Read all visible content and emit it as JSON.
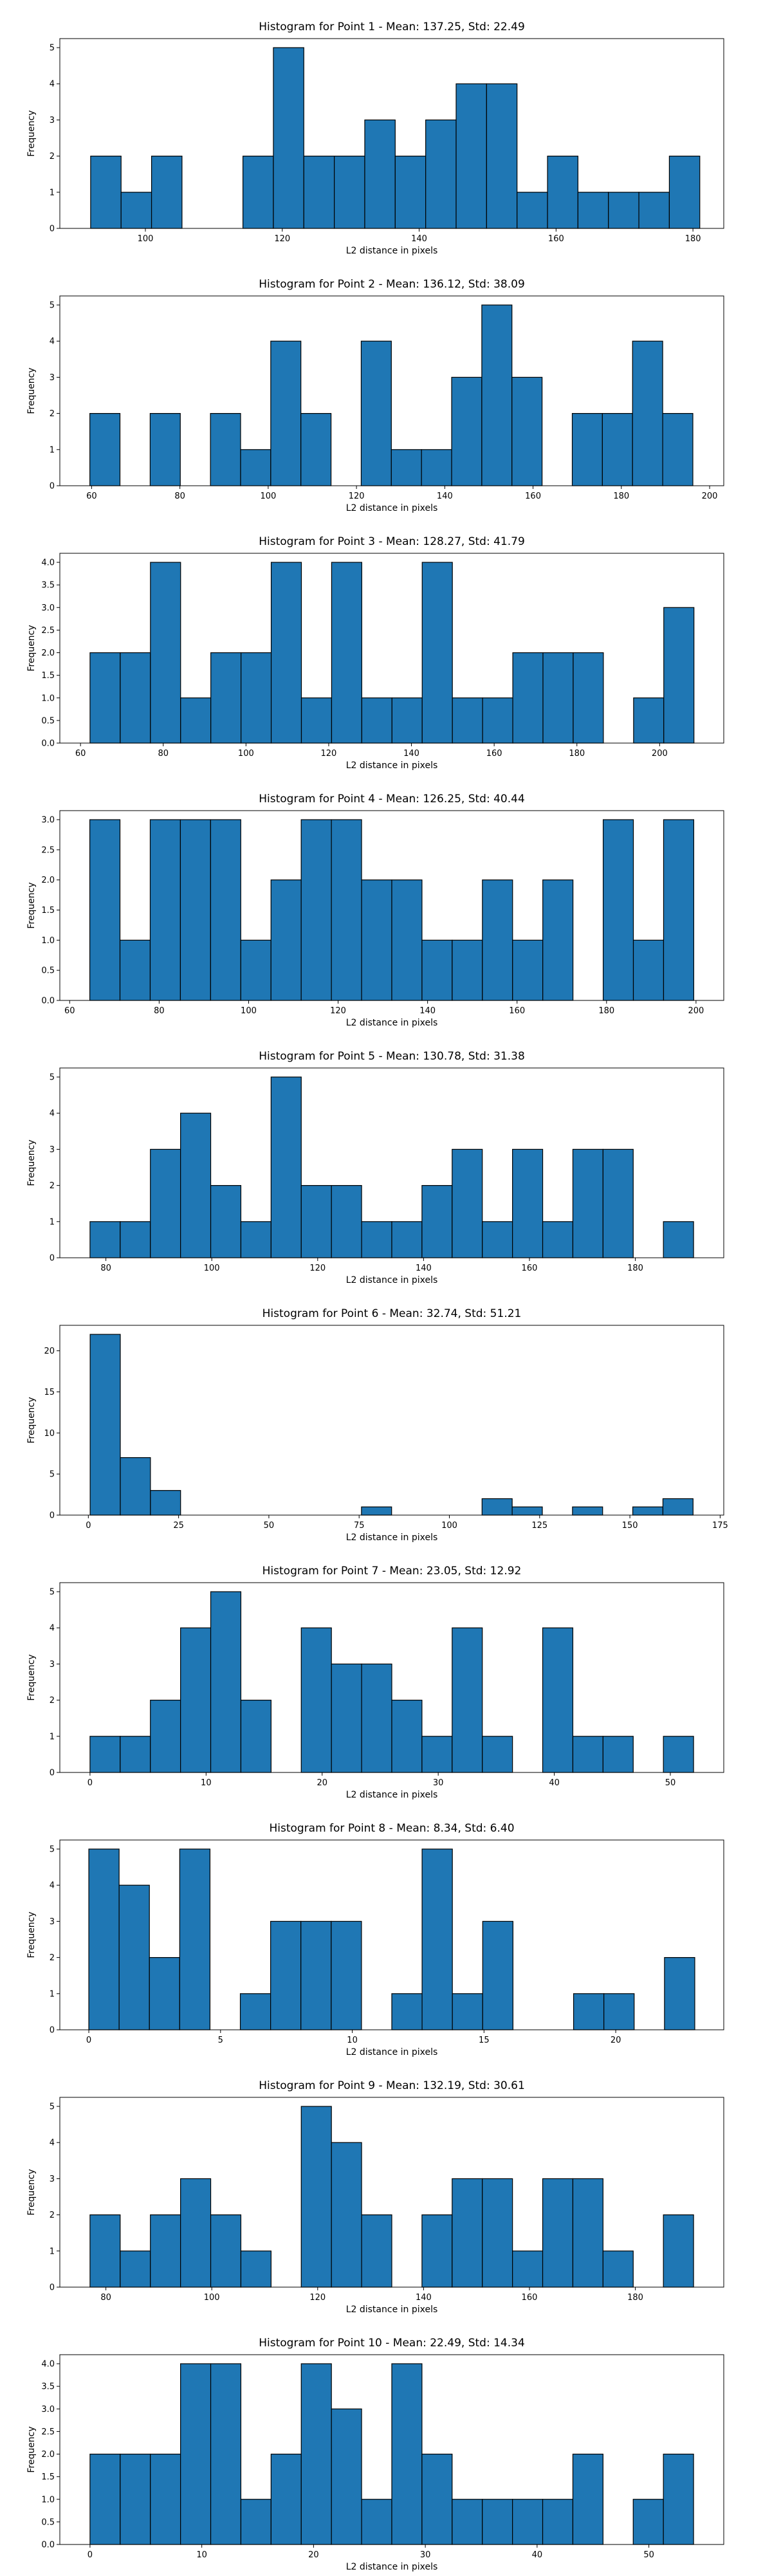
{
  "chart_data": [
    {
      "type": "bar",
      "title": "Histogram for Point 1 - Mean: 137.25, Std: 22.49",
      "xlabel": "L2 distance in pixels",
      "ylabel": "Frequency",
      "color": "#1f77b4",
      "edge_color": "#000000",
      "grid": false,
      "xlim": [
        87.5,
        184.5
      ],
      "ylim": [
        0,
        5.25
      ],
      "bin_start": 92.0,
      "bin_width": 4.45,
      "values": [
        2,
        1,
        2,
        0,
        0,
        2,
        5,
        2,
        2,
        3,
        2,
        3,
        4,
        4,
        1,
        2,
        1,
        1,
        1,
        2
      ],
      "xticks": [
        100,
        120,
        140,
        160,
        180
      ],
      "yticks": [
        0,
        1,
        2,
        3,
        4,
        5
      ]
    },
    {
      "type": "bar",
      "title": "Histogram for Point 2 - Mean: 136.12, Std: 38.09",
      "xlabel": "L2 distance in pixels",
      "ylabel": "Frequency",
      "color": "#1f77b4",
      "edge_color": "#000000",
      "grid": false,
      "xlim": [
        52.8,
        203.2
      ],
      "ylim": [
        0,
        5.25
      ],
      "bin_start": 59.6,
      "bin_width": 6.83,
      "values": [
        2,
        0,
        2,
        0,
        2,
        1,
        4,
        2,
        0,
        4,
        1,
        1,
        3,
        5,
        3,
        0,
        2,
        2,
        4,
        2
      ],
      "xticks": [
        60,
        80,
        100,
        120,
        140,
        160,
        180,
        200
      ],
      "yticks": [
        0,
        1,
        2,
        3,
        4,
        5
      ]
    },
    {
      "type": "bar",
      "title": "Histogram for Point 3 - Mean: 128.27, Std: 41.79",
      "xlabel": "L2 distance in pixels",
      "ylabel": "Frequency",
      "color": "#1f77b4",
      "edge_color": "#000000",
      "grid": false,
      "xlim": [
        55.0,
        215.5
      ],
      "ylim": [
        0,
        4.2
      ],
      "bin_start": 62.3,
      "bin_width": 7.3,
      "values": [
        2,
        2,
        4,
        1,
        2,
        2,
        4,
        1,
        4,
        1,
        1,
        4,
        1,
        1,
        2,
        2,
        2,
        0,
        1,
        3
      ],
      "xticks": [
        60,
        80,
        100,
        120,
        140,
        160,
        180,
        200
      ],
      "yticks": [
        0.0,
        0.5,
        1.0,
        1.5,
        2.0,
        2.5,
        3.0,
        3.5,
        4.0
      ]
    },
    {
      "type": "bar",
      "title": "Histogram for Point 4 - Mean: 126.25, Std: 40.44",
      "xlabel": "L2 distance in pixels",
      "ylabel": "Frequency",
      "color": "#1f77b4",
      "edge_color": "#000000",
      "grid": false,
      "xlim": [
        57.8,
        206.2
      ],
      "ylim": [
        0,
        3.15
      ],
      "bin_start": 64.5,
      "bin_width": 6.75,
      "values": [
        3,
        1,
        3,
        3,
        3,
        1,
        2,
        3,
        3,
        2,
        2,
        1,
        1,
        2,
        1,
        2,
        0,
        3,
        1,
        3
      ],
      "xticks": [
        60,
        80,
        100,
        120,
        140,
        160,
        180,
        200
      ],
      "yticks": [
        0.0,
        0.5,
        1.0,
        1.5,
        2.0,
        2.5,
        3.0
      ]
    },
    {
      "type": "bar",
      "title": "Histogram for Point 5 - Mean: 130.78, Std: 31.38",
      "xlabel": "L2 distance in pixels",
      "ylabel": "Frequency",
      "color": "#1f77b4",
      "edge_color": "#000000",
      "grid": false,
      "xlim": [
        71.3,
        196.7
      ],
      "ylim": [
        0,
        5.25
      ],
      "bin_start": 77.0,
      "bin_width": 5.7,
      "values": [
        1,
        1,
        3,
        4,
        2,
        1,
        5,
        2,
        2,
        1,
        1,
        2,
        3,
        1,
        3,
        1,
        3,
        3,
        0,
        1
      ],
      "xticks": [
        80,
        100,
        120,
        140,
        160,
        180
      ],
      "yticks": [
        0,
        1,
        2,
        3,
        4,
        5
      ]
    },
    {
      "type": "bar",
      "title": "Histogram for Point 6 - Mean: 32.74, Std: 51.21",
      "xlabel": "L2 distance in pixels",
      "ylabel": "Frequency",
      "color": "#1f77b4",
      "edge_color": "#000000",
      "grid": false,
      "xlim": [
        -7.9,
        176.0
      ],
      "ylim": [
        0,
        23.1
      ],
      "bin_start": 0.5,
      "bin_width": 8.35,
      "values": [
        22,
        7,
        3,
        0,
        0,
        0,
        0,
        0,
        0,
        1,
        0,
        0,
        0,
        2,
        1,
        0,
        1,
        0,
        1,
        2
      ],
      "xticks": [
        0,
        25,
        50,
        75,
        100,
        125,
        150,
        175
      ],
      "yticks": [
        0,
        5,
        10,
        15,
        20
      ]
    },
    {
      "type": "bar",
      "title": "Histogram for Point 7 - Mean: 23.05, Std: 12.92",
      "xlabel": "L2 distance in pixels",
      "ylabel": "Frequency",
      "color": "#1f77b4",
      "edge_color": "#000000",
      "grid": false,
      "xlim": [
        -2.6,
        54.6
      ],
      "ylim": [
        0,
        5.25
      ],
      "bin_start": 0.0,
      "bin_width": 2.6,
      "values": [
        1,
        1,
        2,
        4,
        5,
        2,
        0,
        4,
        3,
        3,
        2,
        1,
        4,
        1,
        0,
        4,
        1,
        1,
        0,
        1
      ],
      "xticks": [
        0,
        10,
        20,
        30,
        40,
        50
      ],
      "yticks": [
        0,
        1,
        2,
        3,
        4,
        5
      ]
    },
    {
      "type": "bar",
      "title": "Histogram for Point 8 - Mean: 8.34, Std: 6.40",
      "xlabel": "L2 distance in pixels",
      "ylabel": "Frequency",
      "color": "#1f77b4",
      "edge_color": "#000000",
      "grid": false,
      "xlim": [
        -1.1,
        24.1
      ],
      "ylim": [
        0,
        5.25
      ],
      "bin_start": 0.0,
      "bin_width": 1.15,
      "values": [
        5,
        4,
        2,
        5,
        0,
        1,
        3,
        3,
        3,
        0,
        1,
        5,
        1,
        3,
        0,
        0,
        1,
        1,
        0,
        2
      ],
      "xticks": [
        0,
        5,
        10,
        15,
        20
      ],
      "yticks": [
        0,
        1,
        2,
        3,
        4,
        5
      ]
    },
    {
      "type": "bar",
      "title": "Histogram for Point 9 - Mean: 132.19, Std: 30.61",
      "xlabel": "L2 distance in pixels",
      "ylabel": "Frequency",
      "color": "#1f77b4",
      "edge_color": "#000000",
      "grid": false,
      "xlim": [
        71.3,
        196.7
      ],
      "ylim": [
        0,
        5.25
      ],
      "bin_start": 77.0,
      "bin_width": 5.7,
      "values": [
        2,
        1,
        2,
        3,
        2,
        1,
        0,
        5,
        4,
        2,
        0,
        2,
        3,
        3,
        1,
        3,
        3,
        1,
        0,
        2
      ],
      "xticks": [
        80,
        100,
        120,
        140,
        160,
        180
      ],
      "yticks": [
        0,
        1,
        2,
        3,
        4,
        5
      ]
    },
    {
      "type": "bar",
      "title": "Histogram for Point 10 - Mean: 22.49, Std: 14.34",
      "xlabel": "L2 distance in pixels",
      "ylabel": "Frequency",
      "color": "#1f77b4",
      "edge_color": "#000000",
      "grid": false,
      "xlim": [
        -2.7,
        56.7
      ],
      "ylim": [
        0,
        4.2
      ],
      "bin_start": 0.0,
      "bin_width": 2.7,
      "values": [
        2,
        2,
        2,
        4,
        4,
        1,
        2,
        4,
        3,
        1,
        4,
        2,
        1,
        1,
        1,
        1,
        2,
        0,
        1,
        2
      ],
      "xticks": [
        0,
        10,
        20,
        30,
        40,
        50
      ],
      "yticks": [
        0.0,
        0.5,
        1.0,
        1.5,
        2.0,
        2.5,
        3.0,
        3.5,
        4.0
      ]
    }
  ]
}
